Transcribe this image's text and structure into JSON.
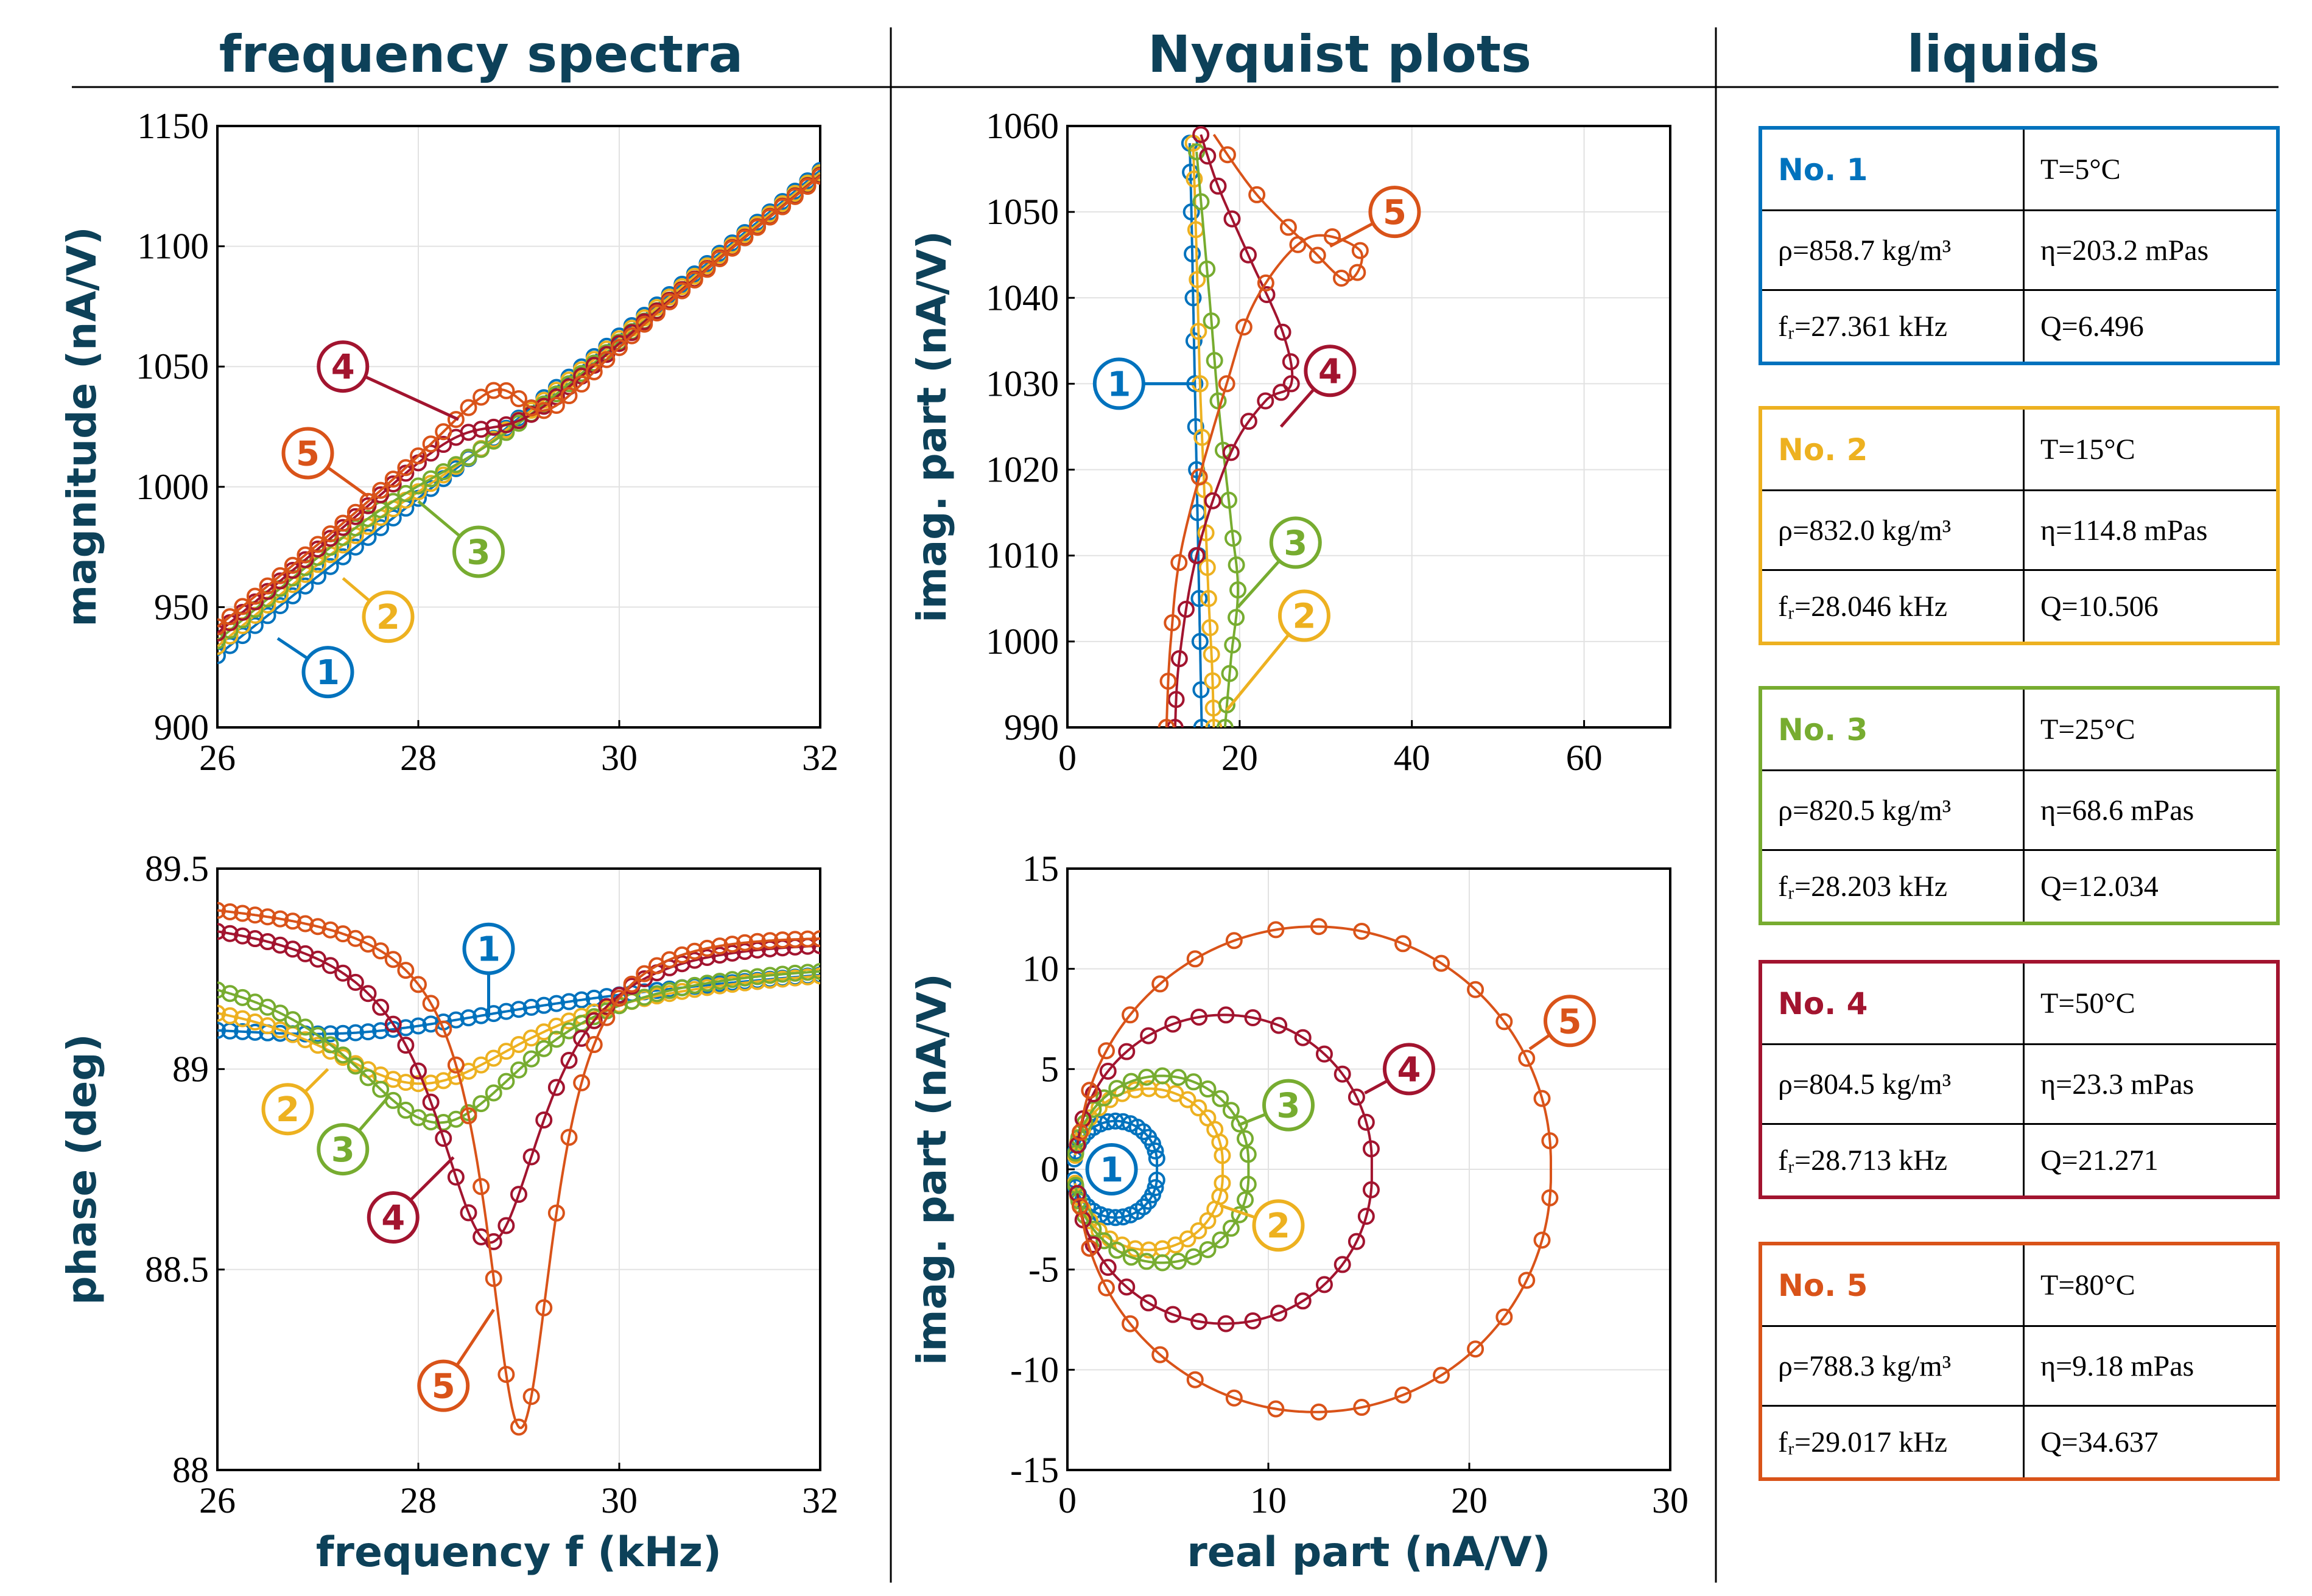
{
  "headers": {
    "spectra": "frequency spectra",
    "nyquist": "Nyquist plots",
    "liquids": "liquids"
  },
  "colors": [
    "#0072BD",
    "#EDB120",
    "#77AC30",
    "#A2142F",
    "#D95319"
  ],
  "markers": [
    "1",
    "2",
    "3",
    "4",
    "5"
  ],
  "liquids": [
    {
      "no": "No. 1",
      "T": "T=5°C",
      "rho": "ρ=858.7 kg/m³",
      "eta": "η=203.2 mPas",
      "fr": "fᵣ=27.361 kHz",
      "Q": "Q=6.496"
    },
    {
      "no": "No. 2",
      "T": "T=15°C",
      "rho": "ρ=832.0 kg/m³",
      "eta": "η=114.8 mPas",
      "fr": "fᵣ=28.046 kHz",
      "Q": "Q=10.506"
    },
    {
      "no": "No. 3",
      "T": "T=25°C",
      "rho": "ρ=820.5 kg/m³",
      "eta": "η=68.6 mPas",
      "fr": "fᵣ=28.203 kHz",
      "Q": "Q=12.034"
    },
    {
      "no": "No. 4",
      "T": "T=50°C",
      "rho": "ρ=804.5 kg/m³",
      "eta": "η=23.3 mPas",
      "fr": "fᵣ=28.713 kHz",
      "Q": "Q=21.271"
    },
    {
      "no": "No. 5",
      "T": "T=80°C",
      "rho": "ρ=788.3 kg/m³",
      "eta": "η=9.18 mPas",
      "fr": "fᵣ=29.017 kHz",
      "Q": "Q=34.637"
    }
  ],
  "chart_data": [
    {
      "id": "magnitude",
      "type": "line",
      "xlabel": "",
      "ylabel": "magnitude  (nA/V)",
      "xlim": [
        26,
        32
      ],
      "ylim": [
        900,
        1150
      ],
      "xticks": [
        26,
        28,
        30,
        32
      ],
      "yticks": [
        900,
        950,
        1000,
        1050,
        1100,
        1150
      ],
      "grid": true,
      "baseline": {
        "x": [
          26,
          32
        ],
        "y": [
          928,
          1133
        ]
      },
      "series": [
        {
          "name": "1",
          "fr": 27.361,
          "Q": 6.496,
          "offset": 0,
          "amp": 2
        },
        {
          "name": "2",
          "fr": 28.046,
          "Q": 10.506,
          "offset": 2,
          "amp": 4
        },
        {
          "name": "3",
          "fr": 28.203,
          "Q": 12.034,
          "offset": 3,
          "amp": 6
        },
        {
          "name": "4",
          "fr": 28.713,
          "Q": 21.271,
          "offset": 7,
          "amp": 9
        },
        {
          "name": "5",
          "fr": 29.017,
          "Q": 34.637,
          "offset": 10,
          "amp": 14
        }
      ],
      "labels": [
        {
          "series": "1",
          "x": 27.1,
          "y": 923,
          "tx": 26.6,
          "ty": 937
        },
        {
          "series": "2",
          "x": 27.7,
          "y": 946,
          "tx": 27.25,
          "ty": 962
        },
        {
          "series": "3",
          "x": 28.6,
          "y": 973,
          "tx": 28.0,
          "ty": 994
        },
        {
          "series": "4",
          "x": 27.25,
          "y": 1050,
          "tx": 28.4,
          "ty": 1028
        },
        {
          "series": "5",
          "x": 26.9,
          "y": 1014,
          "tx": 27.5,
          "ty": 996
        }
      ]
    },
    {
      "id": "phase",
      "type": "line",
      "xlabel": "frequency  f (kHz)",
      "ylabel": "phase (deg)",
      "xlim": [
        26,
        32
      ],
      "ylim": [
        88,
        89.5
      ],
      "xticks": [
        26,
        28,
        30,
        32
      ],
      "yticks": [
        88,
        88.5,
        89,
        89.5
      ],
      "yticklabels": [
        "88",
        "88.5",
        "89",
        "89.5"
      ],
      "grid": true,
      "series": [
        {
          "name": "1",
          "fr": 27.361,
          "Q": 6.496,
          "start": 89.16,
          "end": 89.25,
          "depth": 0.09
        },
        {
          "name": "2",
          "fr": 28.046,
          "Q": 10.506,
          "start": 89.22,
          "end": 89.26,
          "depth": 0.27
        },
        {
          "name": "3",
          "fr": 28.203,
          "Q": 12.034,
          "start": 89.29,
          "end": 89.28,
          "depth": 0.42
        },
        {
          "name": "4",
          "fr": 28.713,
          "Q": 21.271,
          "start": 89.39,
          "end": 89.34,
          "depth": 0.8
        },
        {
          "name": "5",
          "fr": 29.017,
          "Q": 34.637,
          "start": 89.42,
          "end": 89.35,
          "depth": 1.28
        }
      ],
      "labels": [
        {
          "series": "1",
          "x": 28.7,
          "y": 89.3,
          "tx": 28.7,
          "ty": 89.13
        },
        {
          "series": "2",
          "x": 26.7,
          "y": 88.9,
          "tx": 27.1,
          "ty": 89.0
        },
        {
          "series": "3",
          "x": 27.25,
          "y": 88.8,
          "tx": 27.7,
          "ty": 88.93
        },
        {
          "series": "4",
          "x": 27.75,
          "y": 88.63,
          "tx": 28.35,
          "ty": 88.78
        },
        {
          "series": "5",
          "x": 28.25,
          "y": 88.21,
          "tx": 28.75,
          "ty": 88.4
        }
      ]
    },
    {
      "id": "nyquist-zoom",
      "type": "line",
      "xlabel": "",
      "ylabel": "imag. part  (nA/V)",
      "xlim": [
        0,
        70
      ],
      "ylim": [
        990,
        1060
      ],
      "xticks": [
        0,
        20,
        40,
        60
      ],
      "yticks": [
        990,
        1000,
        1010,
        1020,
        1030,
        1040,
        1050,
        1060
      ],
      "grid": true,
      "labels": [
        {
          "series": "1",
          "x": 6,
          "y": 1030,
          "tx": 14.8,
          "ty": 1030
        },
        {
          "series": "2",
          "x": 27.5,
          "y": 1003,
          "tx": 18.5,
          "ty": 992
        },
        {
          "series": "3",
          "x": 26.5,
          "y": 1011.5,
          "tx": 19.8,
          "ty": 1004
        },
        {
          "series": "4",
          "x": 30.5,
          "y": 1031.5,
          "tx": 24.8,
          "ty": 1025
        },
        {
          "series": "5",
          "x": 38,
          "y": 1050,
          "tx": 30.5,
          "ty": 1046
        }
      ]
    },
    {
      "id": "nyquist",
      "type": "line",
      "xlabel": "real part (nA/V)",
      "ylabel": "imag. part  (nA/V)",
      "xlim": [
        0,
        30
      ],
      "ylim": [
        -15,
        15
      ],
      "xticks": [
        0,
        10,
        20,
        30
      ],
      "yticks": [
        -15,
        -10,
        -5,
        0,
        5,
        10,
        15
      ],
      "yticklabels": [
        "-15",
        "-10",
        "-5",
        "0",
        "5",
        "10",
        "15"
      ],
      "grid": true,
      "series": [
        {
          "name": "1",
          "diameter": 4.2
        },
        {
          "name": "2",
          "diameter": 7.5
        },
        {
          "name": "3",
          "diameter": 8.8
        },
        {
          "name": "4",
          "diameter": 15.0
        },
        {
          "name": "5",
          "diameter": 24.0
        }
      ],
      "labels": [
        {
          "series": "1",
          "x": 2.2,
          "y": 0,
          "tx": 2.2,
          "ty": 0
        },
        {
          "series": "2",
          "x": 10.5,
          "y": -2.8,
          "tx": 7.6,
          "ty": -1.8
        },
        {
          "series": "3",
          "x": 11.0,
          "y": 3.2,
          "tx": 8.5,
          "ty": 2.2
        },
        {
          "series": "4",
          "x": 17.0,
          "y": 5.0,
          "tx": 14.8,
          "ty": 3.8
        },
        {
          "series": "5",
          "x": 25.0,
          "y": 7.4,
          "tx": 23.0,
          "ty": 6.0
        }
      ]
    }
  ]
}
